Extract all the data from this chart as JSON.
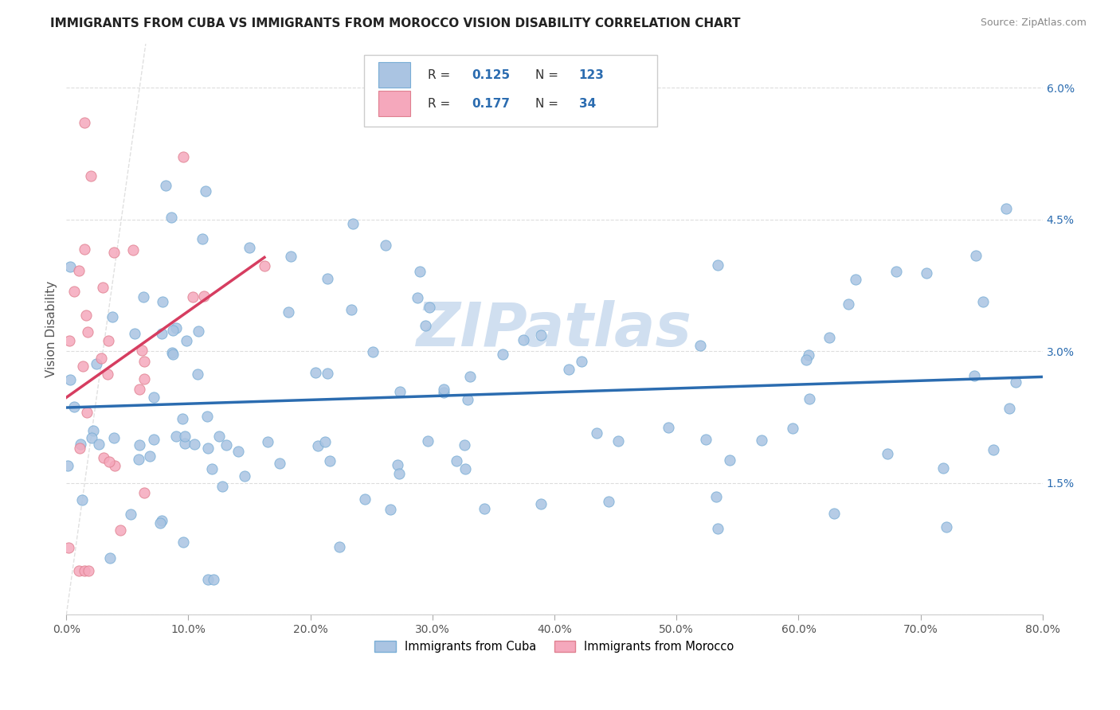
{
  "title": "IMMIGRANTS FROM CUBA VS IMMIGRANTS FROM MOROCCO VISION DISABILITY CORRELATION CHART",
  "source": "Source: ZipAtlas.com",
  "ylabel": "Vision Disability",
  "x_label_cuba": "Immigrants from Cuba",
  "x_label_morocco": "Immigrants from Morocco",
  "xlim": [
    0.0,
    0.8
  ],
  "ylim": [
    0.0,
    0.065
  ],
  "xticks": [
    0.0,
    0.1,
    0.2,
    0.3,
    0.4,
    0.5,
    0.6,
    0.7,
    0.8
  ],
  "yticks": [
    0.0,
    0.015,
    0.03,
    0.045,
    0.06
  ],
  "ytick_labels": [
    "",
    "1.5%",
    "3.0%",
    "4.5%",
    "6.0%"
  ],
  "xtick_labels": [
    "0.0%",
    "",
    "",
    "",
    "",
    "",
    "",
    "",
    "80.0%"
  ],
  "cuba_color": "#aac4e2",
  "morocco_color": "#f5a8bc",
  "cuba_edge_color": "#7aaed6",
  "morocco_edge_color": "#e08090",
  "cuba_line_color": "#2b6cb0",
  "morocco_line_color": "#d63d60",
  "diag_line_color": "#cccccc",
  "R_cuba": 0.125,
  "N_cuba": 123,
  "R_morocco": 0.177,
  "N_morocco": 34,
  "legend_text_color": "#333333",
  "legend_val_color": "#2b6cb0",
  "watermark": "ZIPatlas",
  "watermark_color": "#d0dff0",
  "background_color": "#ffffff",
  "title_color": "#222222",
  "grid_color": "#dddddd",
  "ylabel_color": "#555555",
  "yticklabel_color": "#2b6cb0",
  "xticklabel_color": "#555555"
}
